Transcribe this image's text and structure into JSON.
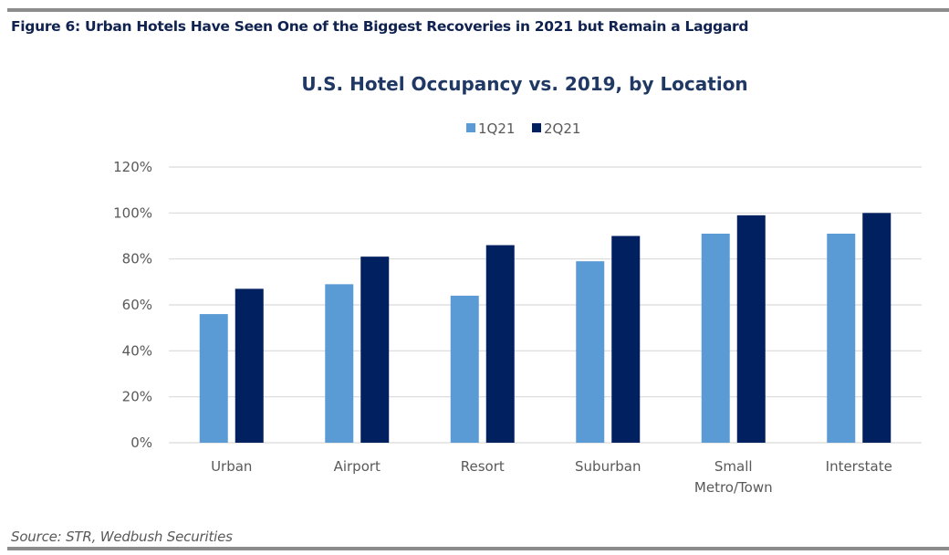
{
  "figure_title": "Figure 6: Urban Hotels Have Seen One of the Biggest Recoveries in 2021 but Remain a Laggard",
  "source": "Source: STR, Wedbush Securities",
  "colors": {
    "series_1q21": "#5b9bd5",
    "series_2q21": "#002060",
    "grid": "#d9d9d9",
    "title": "#1f3864"
  },
  "chart_data": {
    "type": "bar",
    "title": "U.S. Hotel Occupancy  vs. 2019, by Location",
    "xlabel": "",
    "ylabel": "",
    "categories": [
      "Urban",
      "Airport",
      "Resort",
      "Suburban",
      "Small Metro/Town",
      "Interstate"
    ],
    "category_lines": [
      [
        "Urban"
      ],
      [
        "Airport"
      ],
      [
        "Resort"
      ],
      [
        "Suburban"
      ],
      [
        "Small",
        "Metro/Town"
      ],
      [
        "Interstate"
      ]
    ],
    "series": [
      {
        "name": "1Q21",
        "values": [
          56,
          69,
          64,
          79,
          91,
          91
        ]
      },
      {
        "name": "2Q21",
        "values": [
          67,
          81,
          86,
          90,
          99,
          100
        ]
      }
    ],
    "ylim": [
      0,
      120
    ],
    "yticks": [
      0,
      20,
      40,
      60,
      80,
      100,
      120
    ],
    "ytick_labels": [
      "0%",
      "20%",
      "40%",
      "60%",
      "80%",
      "100%",
      "120%"
    ],
    "grid": true,
    "legend_position": "top-center"
  }
}
